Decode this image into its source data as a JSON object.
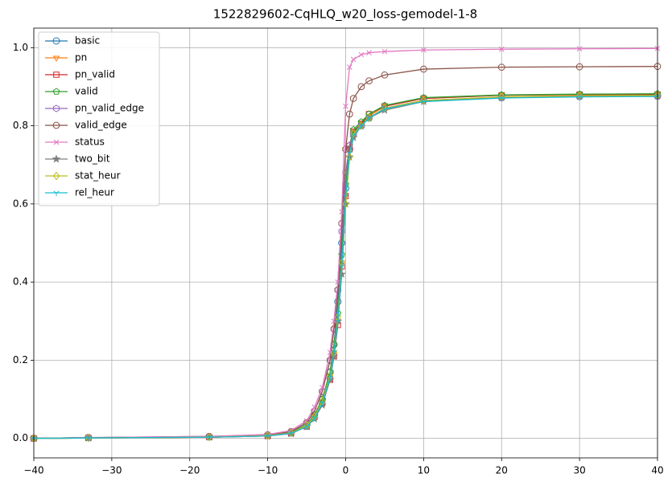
{
  "chart_data": {
    "type": "line",
    "title": "1522829602-CqHLQ_w20_loss-gemodel-1-8",
    "x": [
      -40,
      -33,
      -17.5,
      -10,
      -7,
      -5,
      -4,
      -3,
      -2,
      -1.5,
      -1,
      -0.5,
      0,
      0.5,
      1,
      2,
      3,
      5,
      10,
      20,
      30,
      40
    ],
    "series": [
      {
        "name": "basic",
        "color": "#1f77b4",
        "marker": "circle",
        "values": [
          0,
          0.002,
          0.004,
          0.008,
          0.015,
          0.035,
          0.06,
          0.1,
          0.17,
          0.24,
          0.35,
          0.5,
          0.64,
          0.74,
          0.78,
          0.8,
          0.82,
          0.845,
          0.865,
          0.872,
          0.875,
          0.876
        ]
      },
      {
        "name": "pn",
        "color": "#ff7f0e",
        "marker": "triangle-down",
        "values": [
          0,
          0.001,
          0.003,
          0.007,
          0.014,
          0.032,
          0.055,
          0.095,
          0.16,
          0.22,
          0.3,
          0.45,
          0.62,
          0.74,
          0.785,
          0.805,
          0.825,
          0.85,
          0.87,
          0.878,
          0.88,
          0.88
        ]
      },
      {
        "name": "pn_valid",
        "color": "#d62728",
        "marker": "square",
        "values": [
          0,
          0.001,
          0.003,
          0.006,
          0.013,
          0.03,
          0.055,
          0.09,
          0.15,
          0.21,
          0.29,
          0.44,
          0.62,
          0.74,
          0.785,
          0.805,
          0.83,
          0.85,
          0.87,
          0.878,
          0.88,
          0.88
        ]
      },
      {
        "name": "valid",
        "color": "#2ca02c",
        "marker": "pentagon",
        "values": [
          0,
          0.001,
          0.004,
          0.008,
          0.015,
          0.035,
          0.06,
          0.1,
          0.17,
          0.24,
          0.32,
          0.47,
          0.65,
          0.75,
          0.79,
          0.81,
          0.83,
          0.852,
          0.872,
          0.879,
          0.881,
          0.882
        ]
      },
      {
        "name": "pn_valid_edge",
        "color": "#9467bd",
        "marker": "hexagon",
        "values": [
          0,
          0.002,
          0.004,
          0.009,
          0.017,
          0.04,
          0.07,
          0.12,
          0.2,
          0.28,
          0.38,
          0.53,
          0.68,
          0.75,
          0.78,
          0.8,
          0.82,
          0.845,
          0.865,
          0.872,
          0.875,
          0.876
        ]
      },
      {
        "name": "valid_edge",
        "color": "#8c564b",
        "marker": "octagon",
        "values": [
          0,
          0.002,
          0.005,
          0.009,
          0.017,
          0.04,
          0.07,
          0.12,
          0.2,
          0.28,
          0.38,
          0.55,
          0.74,
          0.83,
          0.87,
          0.9,
          0.915,
          0.93,
          0.945,
          0.95,
          0.951,
          0.952
        ]
      },
      {
        "name": "status",
        "color": "#e377c2",
        "marker": "x",
        "values": [
          0,
          0.002,
          0.005,
          0.01,
          0.02,
          0.045,
          0.08,
          0.13,
          0.22,
          0.3,
          0.4,
          0.58,
          0.85,
          0.95,
          0.97,
          0.982,
          0.987,
          0.99,
          0.994,
          0.996,
          0.997,
          0.998
        ]
      },
      {
        "name": "two_bit",
        "color": "#7f7f7f",
        "marker": "star",
        "values": [
          0,
          0.001,
          0.003,
          0.006,
          0.012,
          0.03,
          0.05,
          0.085,
          0.15,
          0.21,
          0.3,
          0.42,
          0.6,
          0.72,
          0.77,
          0.8,
          0.82,
          0.84,
          0.862,
          0.872,
          0.875,
          0.876
        ]
      },
      {
        "name": "stat_heur",
        "color": "#bcbd22",
        "marker": "diamond",
        "values": [
          0,
          0.001,
          0.003,
          0.007,
          0.014,
          0.033,
          0.056,
          0.095,
          0.16,
          0.22,
          0.31,
          0.45,
          0.6,
          0.72,
          0.78,
          0.8,
          0.82,
          0.845,
          0.865,
          0.874,
          0.877,
          0.878
        ]
      },
      {
        "name": "rel_heur",
        "color": "#17becf",
        "marker": "tri-down",
        "values": [
          0,
          0.001,
          0.003,
          0.006,
          0.013,
          0.03,
          0.052,
          0.09,
          0.155,
          0.22,
          0.3,
          0.44,
          0.62,
          0.73,
          0.775,
          0.8,
          0.82,
          0.843,
          0.862,
          0.871,
          0.874,
          0.875
        ]
      }
    ],
    "xlim": [
      -40,
      40
    ],
    "xticks": [
      {
        "value": -40,
        "label": "−40"
      },
      {
        "value": -30,
        "label": "−30"
      },
      {
        "value": -20,
        "label": "−20"
      },
      {
        "value": -10,
        "label": "−10"
      },
      0,
      10,
      20,
      30,
      40
    ],
    "ylim": [
      -0.05,
      1.05
    ],
    "yticks": [
      {
        "value": 0,
        "label": "0.0"
      },
      0.2,
      0.4,
      0.6,
      0.8,
      {
        "value": 1,
        "label": "1.0"
      }
    ],
    "grid": true,
    "legend": "upper-left"
  }
}
